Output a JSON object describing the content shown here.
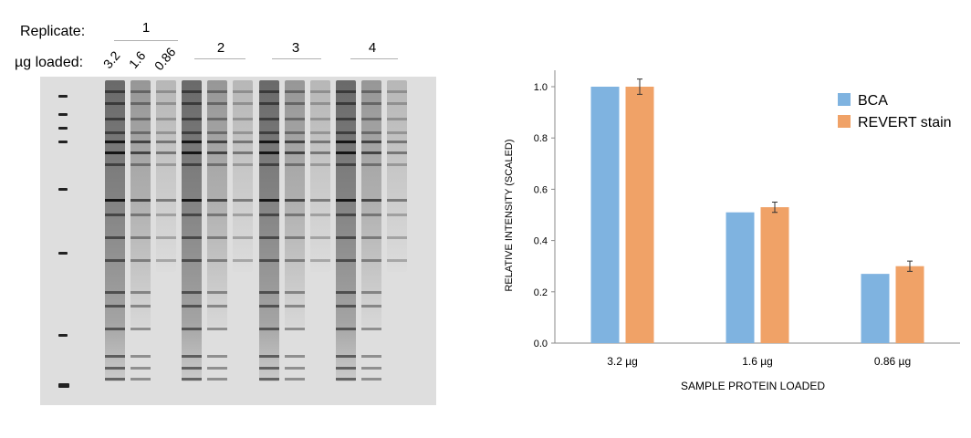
{
  "gel": {
    "replicate_label": "Replicate:",
    "loaded_label": "µg loaded:",
    "replicates": [
      "1",
      "2",
      "3",
      "4"
    ],
    "loads": [
      "3.2",
      "1.6",
      "0.86"
    ]
  },
  "chart_data": {
    "type": "bar",
    "categories": [
      "3.2 µg",
      "1.6 µg",
      "0.86 µg"
    ],
    "series": [
      {
        "name": "BCA",
        "color": "#7fb3e0",
        "values": [
          1.0,
          0.51,
          0.27
        ],
        "errors": [
          0,
          0,
          0
        ]
      },
      {
        "name": "REVERT stain",
        "color": "#f0a267",
        "values": [
          1.0,
          0.53,
          0.3
        ],
        "errors": [
          0.03,
          0.02,
          0.02
        ]
      }
    ],
    "xlabel": "SAMPLE PROTEIN LOADED",
    "ylabel": "RELATIVE INTENSITY (SCALED)",
    "ylim": [
      0,
      1.0
    ],
    "yticks": [
      "0.0",
      "0.2",
      "0.4",
      "0.6",
      "0.8",
      "1.0"
    ],
    "legend_position": "top-right",
    "grid": false
  }
}
